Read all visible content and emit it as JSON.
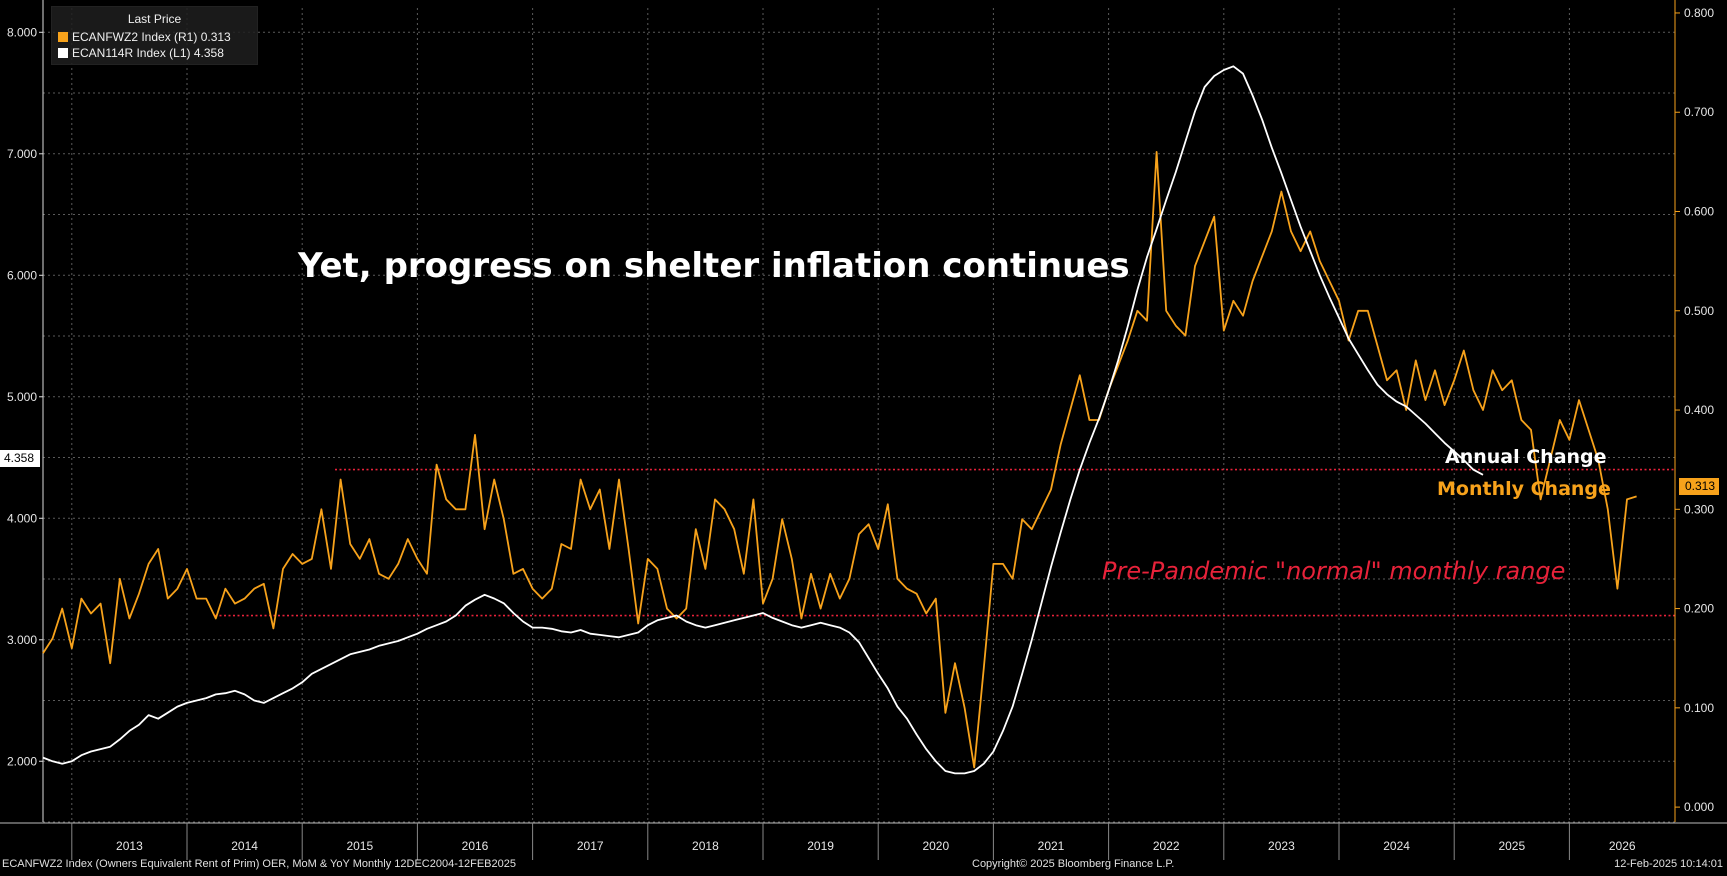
{
  "legend": {
    "title": "Last Price",
    "rows": [
      {
        "label": "ECANFWZ2 Index  (R1) 0.313",
        "color": "#f7a21b"
      },
      {
        "label": "ECAN114R Index  (L1) 4.358",
        "color": "#ffffff"
      }
    ]
  },
  "annotations": {
    "title": "Yet, progress on shelter inflation continues",
    "annual": "Annual Change",
    "monthly": "Monthly Change",
    "prepandemic": "Pre-Pandemic \"normal\" monthly range"
  },
  "last_labels": {
    "left": "4.358",
    "right": "0.313"
  },
  "footer": {
    "left": "ECANFWZ2 Index (Owners Equivalent Rent of Prim) OER, MoM & YoY  Monthly 12DEC2004-12FEB2025",
    "center": "Copyright© 2025 Bloomberg Finance L.P.",
    "right": "12-Feb-2025 10:14:01"
  },
  "colors": {
    "monthly": "#f7a21b",
    "annual": "#ffffff",
    "reference": "#e8223a",
    "grid": "#5a5a5a"
  },
  "chart_data": {
    "type": "line",
    "x_range": [
      "2012-10",
      "2026-12"
    ],
    "years": [
      "2013",
      "2014",
      "2015",
      "2016",
      "2017",
      "2018",
      "2019",
      "2020",
      "2021",
      "2022",
      "2023",
      "2024",
      "2025",
      "2026"
    ],
    "y_left": {
      "range": [
        1.5,
        8.2
      ],
      "ticks": [
        "2.000",
        "3.000",
        "4.000",
        "5.000",
        "6.000",
        "7.000",
        "8.000"
      ]
    },
    "y_right": {
      "range": [
        -0.015,
        0.805
      ],
      "ticks": [
        "0.000",
        "0.100",
        "0.200",
        "0.300",
        "0.400",
        "0.500",
        "0.600",
        "0.700",
        "0.800"
      ]
    },
    "reference_lines": [
      {
        "axis": "right",
        "value": 0.34
      },
      {
        "axis": "right",
        "value": 0.193
      }
    ],
    "series": [
      {
        "axis": "right",
        "start": "2012-10",
        "values": [
          0.155,
          0.17,
          0.2,
          0.16,
          0.21,
          0.195,
          0.205,
          0.145,
          0.23,
          0.19,
          0.215,
          0.245,
          0.26,
          0.21,
          0.22,
          0.24,
          0.21,
          0.21,
          0.19,
          0.22,
          0.205,
          0.21,
          0.22,
          0.225,
          0.18,
          0.24,
          0.255,
          0.245,
          0.25,
          0.3,
          0.24,
          0.33,
          0.265,
          0.25,
          0.27,
          0.235,
          0.23,
          0.245,
          0.27,
          0.25,
          0.235,
          0.345,
          0.31,
          0.3,
          0.3,
          0.375,
          0.28,
          0.33,
          0.29,
          0.235,
          0.24,
          0.22,
          0.21,
          0.22,
          0.265,
          0.26,
          0.33,
          0.3,
          0.32,
          0.26,
          0.33,
          0.26,
          0.185,
          0.25,
          0.24,
          0.2,
          0.19,
          0.2,
          0.28,
          0.24,
          0.31,
          0.3,
          0.28,
          0.235,
          0.31,
          0.205,
          0.23,
          0.29,
          0.25,
          0.19,
          0.235,
          0.2,
          0.235,
          0.21,
          0.23,
          0.275,
          0.285,
          0.26,
          0.305,
          0.23,
          0.22,
          0.215,
          0.195,
          0.21,
          0.095,
          0.145,
          0.1,
          0.04,
          0.14,
          0.245,
          0.245,
          0.23,
          0.29,
          0.28,
          0.3,
          0.32,
          0.365,
          0.4,
          0.435,
          0.39,
          0.39,
          0.42,
          0.445,
          0.47,
          0.5,
          0.49,
          0.66,
          0.5,
          0.485,
          0.475,
          0.545,
          0.57,
          0.595,
          0.48,
          0.51,
          0.495,
          0.53,
          0.555,
          0.58,
          0.62,
          0.58,
          0.56,
          0.58,
          0.55,
          0.53,
          0.51,
          0.47,
          0.5,
          0.5,
          0.465,
          0.43,
          0.44,
          0.4,
          0.45,
          0.41,
          0.44,
          0.405,
          0.43,
          0.46,
          0.42,
          0.4,
          0.44,
          0.42,
          0.43,
          0.39,
          0.38,
          0.31,
          0.35,
          0.39,
          0.37,
          0.41,
          0.38,
          0.35,
          0.3,
          0.22,
          0.31,
          0.313
        ]
      },
      {
        "axis": "left",
        "start": "2012-10",
        "values": [
          2.03,
          2.0,
          1.98,
          2.0,
          2.05,
          2.08,
          2.1,
          2.12,
          2.18,
          2.25,
          2.3,
          2.38,
          2.35,
          2.4,
          2.45,
          2.48,
          2.5,
          2.52,
          2.55,
          2.56,
          2.58,
          2.55,
          2.5,
          2.48,
          2.52,
          2.56,
          2.6,
          2.65,
          2.72,
          2.76,
          2.8,
          2.84,
          2.88,
          2.9,
          2.92,
          2.95,
          2.97,
          2.99,
          3.02,
          3.05,
          3.09,
          3.12,
          3.15,
          3.2,
          3.28,
          3.33,
          3.37,
          3.34,
          3.3,
          3.22,
          3.15,
          3.1,
          3.1,
          3.09,
          3.07,
          3.06,
          3.08,
          3.05,
          3.04,
          3.03,
          3.02,
          3.04,
          3.06,
          3.12,
          3.16,
          3.18,
          3.2,
          3.15,
          3.12,
          3.1,
          3.12,
          3.14,
          3.16,
          3.18,
          3.2,
          3.22,
          3.18,
          3.15,
          3.12,
          3.1,
          3.12,
          3.14,
          3.12,
          3.1,
          3.06,
          2.98,
          2.85,
          2.72,
          2.6,
          2.45,
          2.35,
          2.22,
          2.1,
          2.0,
          1.92,
          1.9,
          1.9,
          1.92,
          1.98,
          2.08,
          2.25,
          2.45,
          2.72,
          3.0,
          3.3,
          3.6,
          3.88,
          4.15,
          4.4,
          4.62,
          4.82,
          5.05,
          5.3,
          5.58,
          5.88,
          6.15,
          6.38,
          6.62,
          6.85,
          7.1,
          7.35,
          7.55,
          7.64,
          7.69,
          7.72,
          7.66,
          7.48,
          7.28,
          7.05,
          6.84,
          6.62,
          6.4,
          6.2,
          6.0,
          5.82,
          5.65,
          5.48,
          5.35,
          5.22,
          5.1,
          5.02,
          4.96,
          4.92,
          4.85,
          4.78,
          4.7,
          4.62,
          4.55,
          4.48,
          4.4,
          4.358
        ]
      }
    ]
  }
}
